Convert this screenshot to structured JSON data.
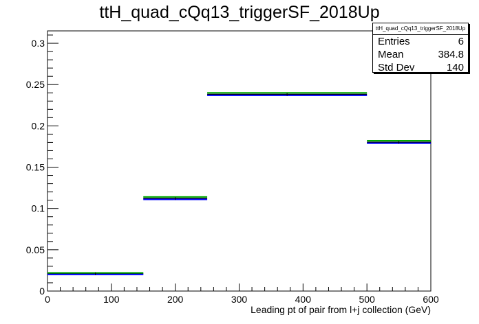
{
  "chart_data": {
    "type": "histogram",
    "title": "ttH_quad_cQq13_triggerSF_2018Up",
    "xlabel": "Leading pt of pair from l+j collection (GeV)",
    "ylabel": "",
    "xlim": [
      0,
      600
    ],
    "ylim": [
      0,
      0.315
    ],
    "x_ticks": [
      "0",
      "100",
      "200",
      "300",
      "400",
      "500",
      "600"
    ],
    "y_ticks": [
      "0",
      "0.05",
      "0.1",
      "0.15",
      "0.2",
      "0.25",
      "0.3"
    ],
    "bin_edges": [
      0,
      150,
      250,
      500,
      600
    ],
    "series": [
      {
        "color": "#000000",
        "values": [
          0.021,
          0.112,
          0.238,
          0.18
        ]
      },
      {
        "color": "#0000ff",
        "values": [
          0.02,
          0.111,
          0.237,
          0.179
        ]
      },
      {
        "color": "#00aa00",
        "values": [
          0.022,
          0.114,
          0.24,
          0.182
        ]
      }
    ],
    "grid": false,
    "legend": "none"
  },
  "stats": {
    "title": "ttH_quad_cQq13_triggerSF_2018Up",
    "entries_label": "Entries",
    "entries_value": "6",
    "mean_label": "Mean",
    "mean_value": "384.8",
    "stddev_label": "Std Dev",
    "stddev_value": "140"
  }
}
